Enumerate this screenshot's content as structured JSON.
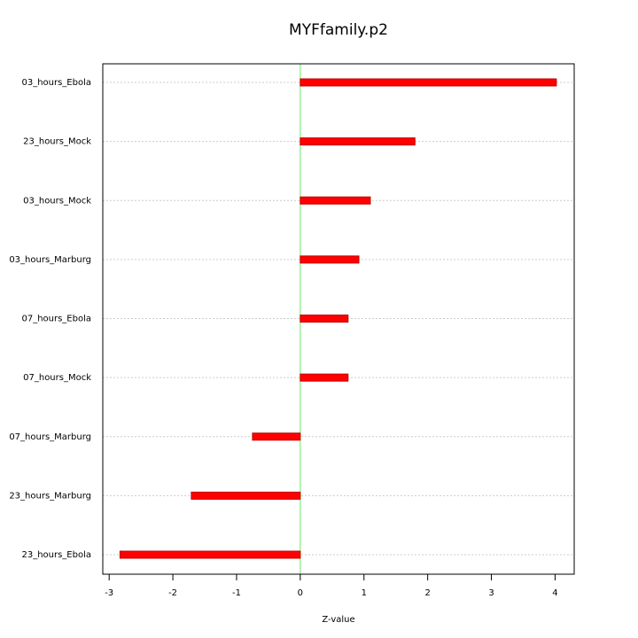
{
  "chart_data": {
    "type": "barh",
    "title": "MYFfamily.p2",
    "x_label": "Z-value",
    "categories": [
      "03_hours_Ebola",
      "23_hours_Mock",
      "03_hours_Mock",
      "03_hours_Marburg",
      "07_hours_Ebola",
      "07_hours_Mock",
      "07_hours_Marburg",
      "23_hours_Marburg",
      "23_hours_Ebola"
    ],
    "values": [
      4.02,
      1.8,
      1.1,
      0.92,
      0.75,
      0.75,
      -0.75,
      -1.71,
      -2.83
    ],
    "color": "#ff0000",
    "reference_line": 0,
    "reference_color": "#66ee66",
    "xlim": [
      -3.1,
      4.3
    ],
    "xticks": [
      -3,
      -2,
      -1,
      0,
      1,
      2,
      3,
      4
    ],
    "grid": true
  }
}
